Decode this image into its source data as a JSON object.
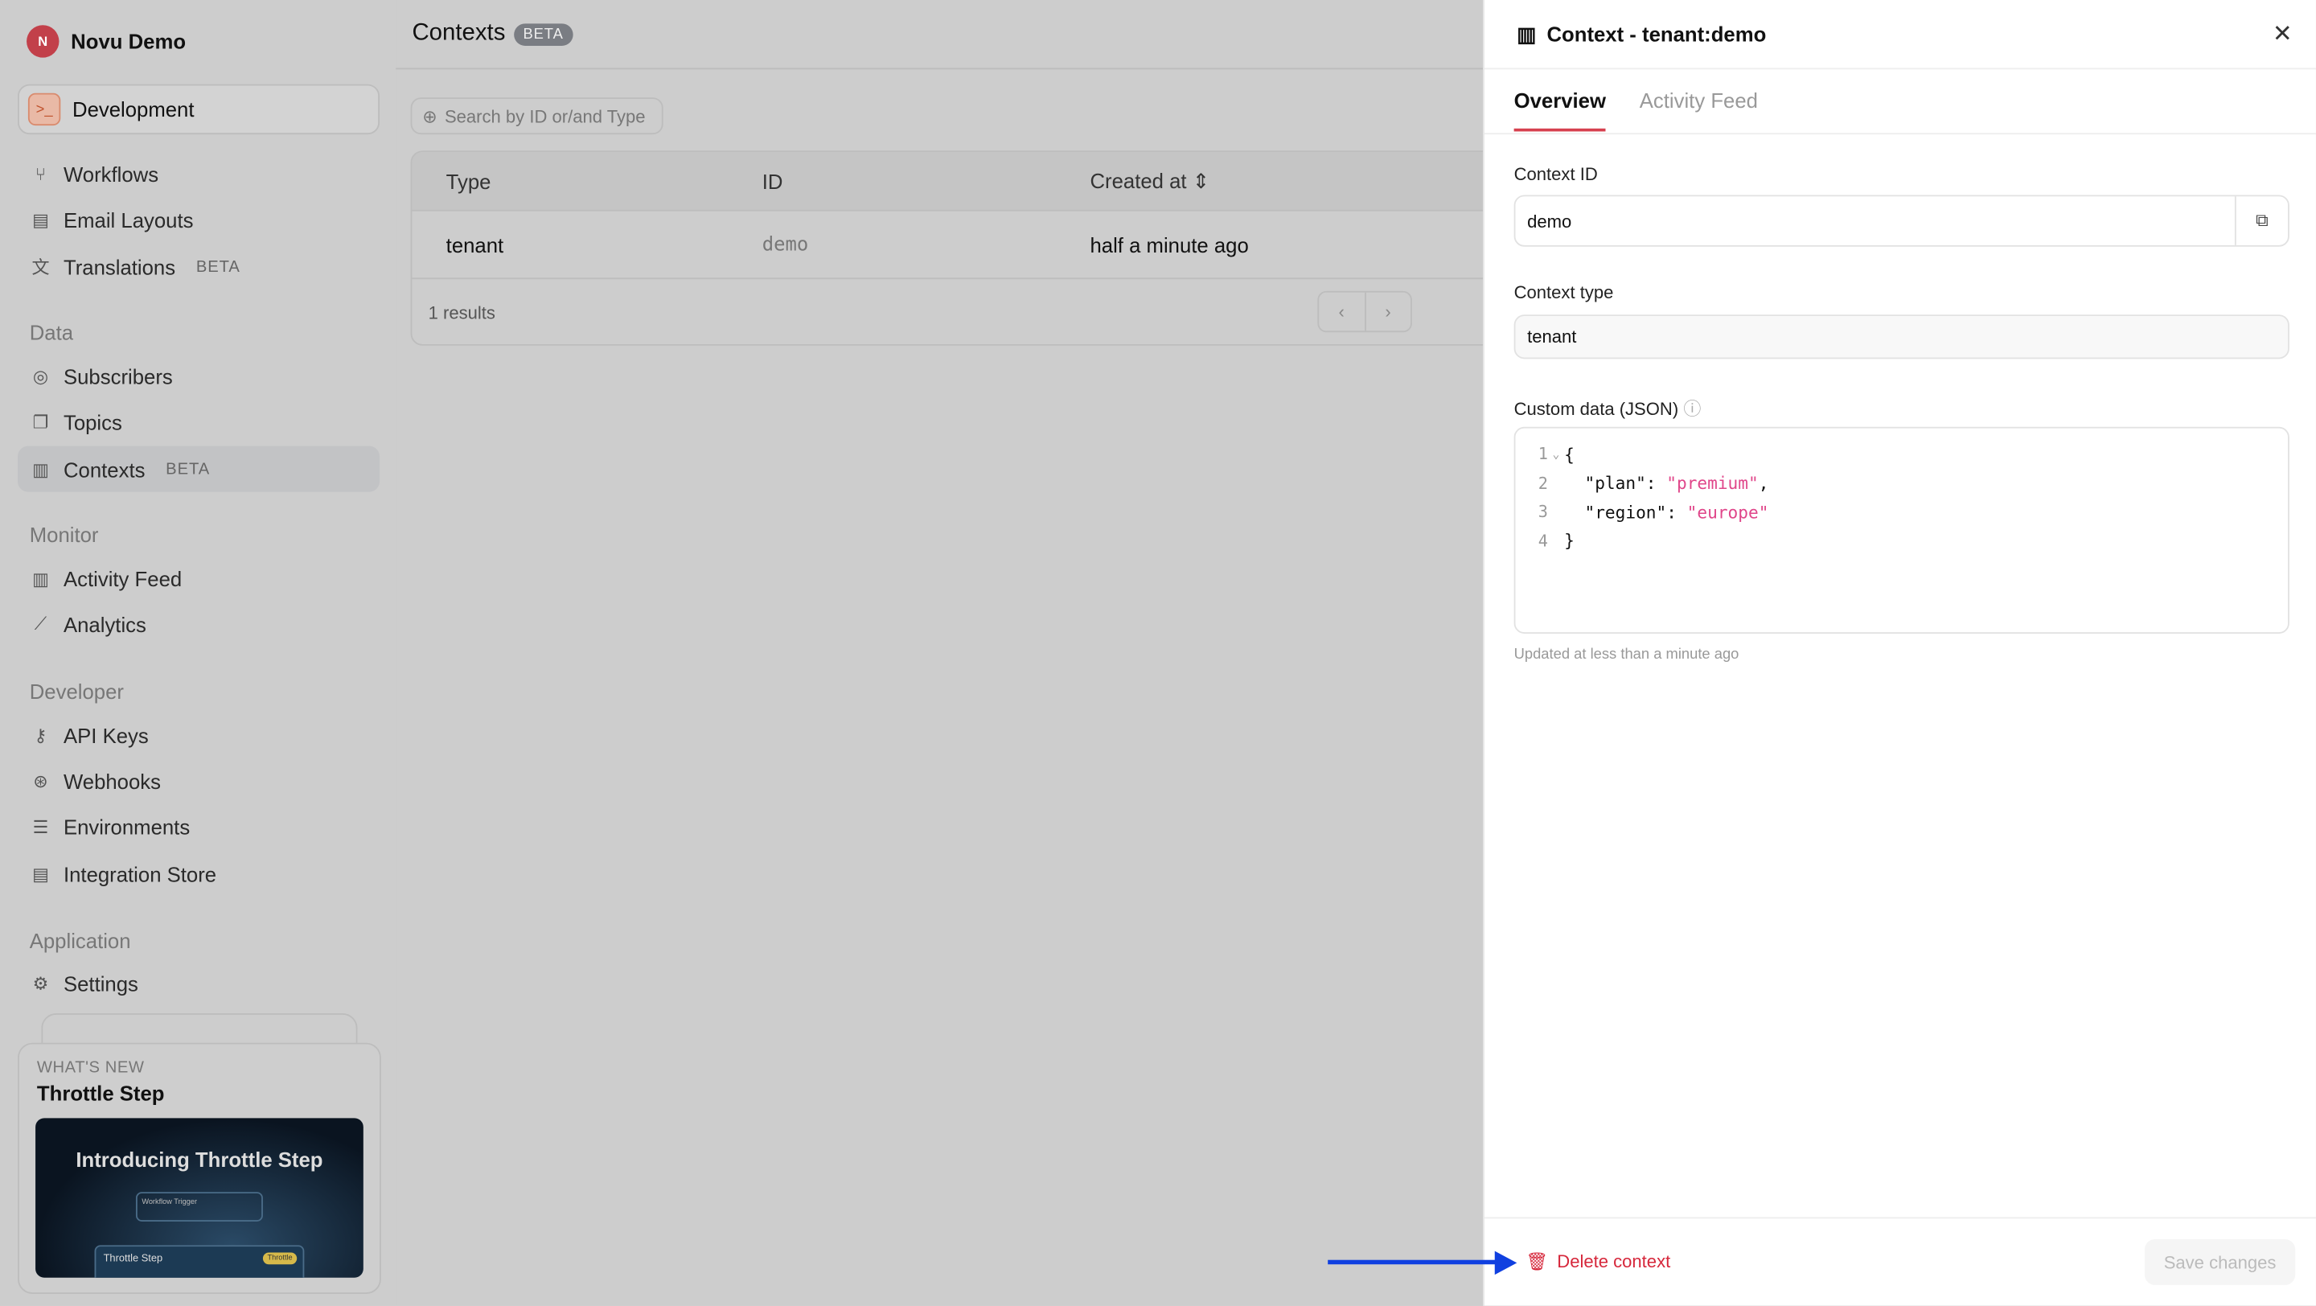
{
  "org": {
    "initial": "N",
    "name": "Novu Demo"
  },
  "environment": {
    "label": "Development"
  },
  "nav": {
    "workflows": "Workflows",
    "email_layouts": "Email Layouts",
    "translations": "Translations",
    "translations_badge": "BETA",
    "data_section": "Data",
    "subscribers": "Subscribers",
    "topics": "Topics",
    "contexts": "Contexts",
    "contexts_badge": "BETA",
    "monitor_section": "Monitor",
    "activity_feed": "Activity Feed",
    "analytics": "Analytics",
    "developer_section": "Developer",
    "api_keys": "API Keys",
    "webhooks": "Webhooks",
    "environments": "Environments",
    "integration_store": "Integration Store",
    "application_section": "Application",
    "settings": "Settings"
  },
  "whats_new": {
    "kicker": "WHAT'S NEW",
    "title": "Throttle Step",
    "image_heading": "Introducing Throttle Step",
    "image_card1": "Workflow Trigger",
    "image_card2": "Throttle Step",
    "image_badge": "Throttle"
  },
  "page": {
    "title": "Contexts",
    "badge": "BETA",
    "search_placeholder": "Search by ID or/and Type",
    "columns": [
      "Type",
      "ID",
      "Created at"
    ],
    "rows": [
      {
        "type": "tenant",
        "id": "demo",
        "created": "half a minute ago"
      }
    ],
    "results": "1 results"
  },
  "panel": {
    "title": "Context - tenant:demo",
    "tabs": [
      "Overview",
      "Activity Feed"
    ],
    "context_id_label": "Context ID",
    "context_id": "demo",
    "context_type_label": "Context type",
    "context_type": "tenant",
    "custom_data_label": "Custom data (JSON)",
    "json_lines": [
      {
        "n": "1",
        "k": "{",
        "v": "",
        "e": ""
      },
      {
        "n": "2",
        "k": "  \"plan\": ",
        "v": "\"premium\"",
        "e": ","
      },
      {
        "n": "3",
        "k": "  \"region\": ",
        "v": "\"europe\"",
        "e": ""
      },
      {
        "n": "4",
        "k": "}",
        "v": "",
        "e": ""
      }
    ],
    "updated": "Updated at less than a minute ago",
    "delete": "Delete context",
    "save": "Save changes"
  },
  "colors": {
    "accent": "#d6404f",
    "danger": "#d6273b",
    "json_string": "#e0468a",
    "annotation_arrow": "#1040e0"
  }
}
